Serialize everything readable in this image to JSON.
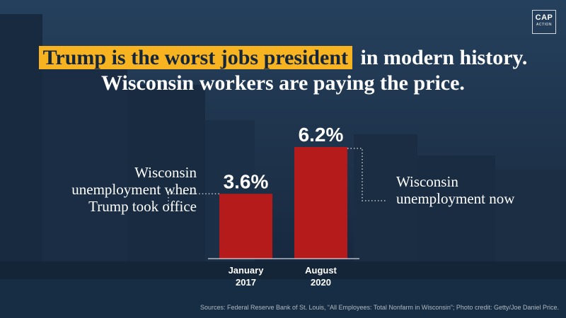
{
  "logo": {
    "main": "CAP",
    "sub": "ACTION"
  },
  "headline": {
    "highlight": "Trump is the worst jobs president",
    "rest": "in modern history. Wisconsin workers are paying the price."
  },
  "labels": {
    "left": "Wisconsin unemployment when Trump took office",
    "right": "Wisconsin unemployment now"
  },
  "sources": "Sources: Federal Reserve Bank of St. Louis, “All Employees: Total Nonfarm in Wisconsin”; Photo credit: Getty/Joe Daniel Price.",
  "colors": {
    "bar": "#b61b1b",
    "highlight": "#f7b320",
    "background": "#1d3047"
  },
  "chart_data": {
    "type": "bar",
    "categories": [
      "January 2017",
      "August 2020"
    ],
    "category_lines": [
      [
        "January",
        "2017"
      ],
      [
        "August",
        "2020"
      ]
    ],
    "values": [
      3.6,
      6.2
    ],
    "value_labels": [
      "3.6%",
      "6.2%"
    ],
    "title": "",
    "xlabel": "",
    "ylabel": "",
    "ylim": [
      0,
      6.2
    ],
    "grid": false,
    "legend": "none"
  }
}
